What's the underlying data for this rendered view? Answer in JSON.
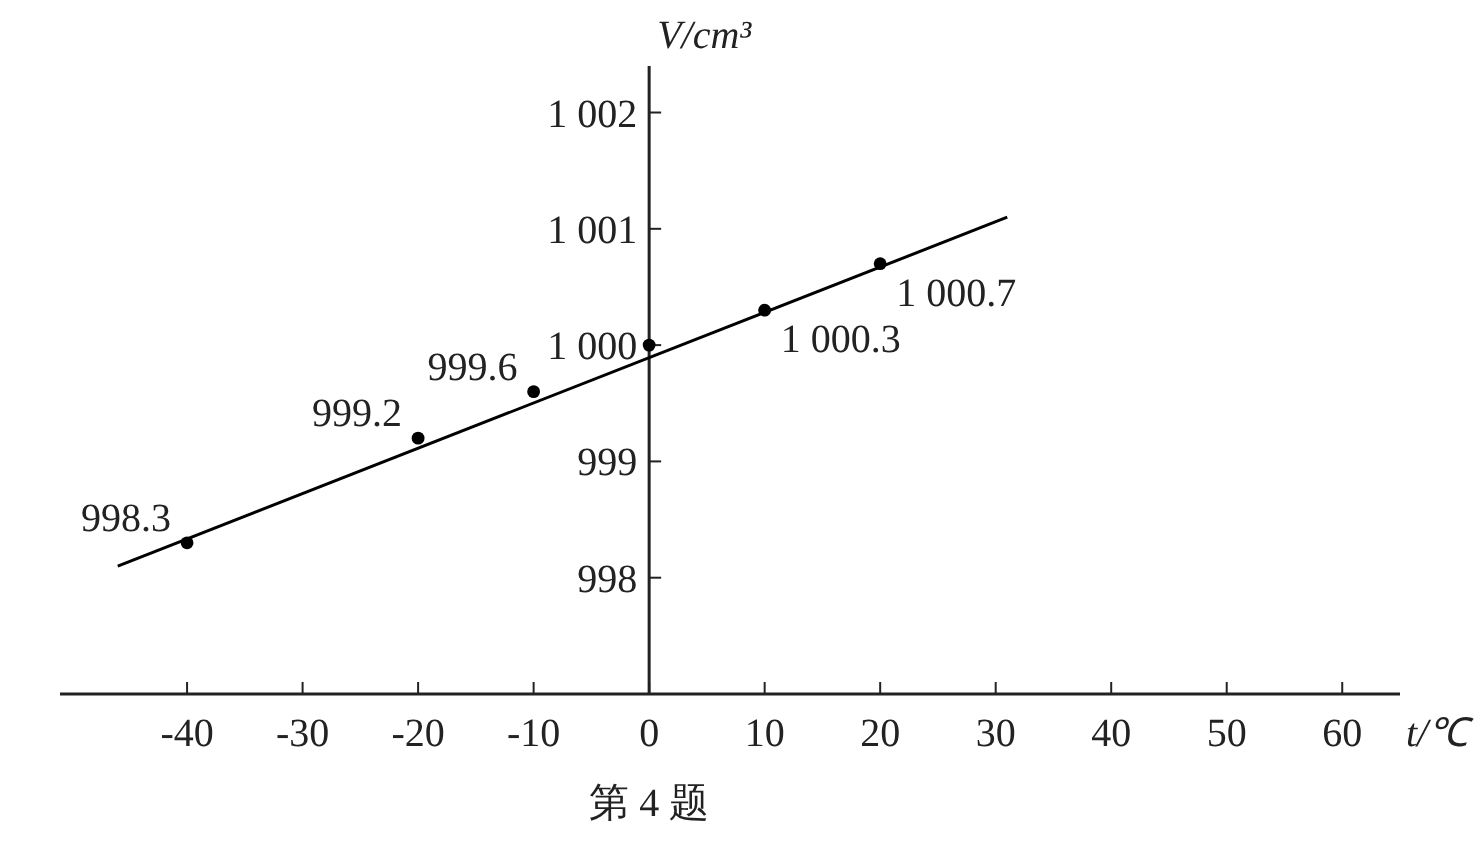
{
  "chart_data": {
    "type": "scatter",
    "xlabel": "t/℃",
    "ylabel": "V/cm³",
    "xlim": [
      -51,
      65
    ],
    "ylim": [
      997,
      1002.4
    ],
    "xticks": [
      -40,
      -30,
      -20,
      -10,
      0,
      10,
      20,
      30,
      40,
      50,
      60
    ],
    "yticks": [
      998,
      999,
      {
        "value": 1000,
        "label": "1 000"
      },
      {
        "value": 1001,
        "label": "1 001"
      },
      {
        "value": 1002,
        "label": "1 002"
      }
    ],
    "marker": "circle",
    "annotations": [
      "第 4 题"
    ],
    "series": [
      {
        "type": "line",
        "marker": "none",
        "x": [
          -46,
          31
        ],
        "values": [
          998.1,
          1001.1
        ],
        "color": "#000000"
      },
      {
        "x": [
          -40,
          -20,
          -10,
          0,
          10,
          20
        ],
        "values": [
          998.3,
          999.2,
          999.6,
          1000,
          1000.3,
          1000.7
        ],
        "value_labels": [
          "998.3",
          "999.2",
          "999.6",
          null,
          "1 000.3",
          "1 000.7"
        ],
        "color": "#000000"
      }
    ]
  }
}
